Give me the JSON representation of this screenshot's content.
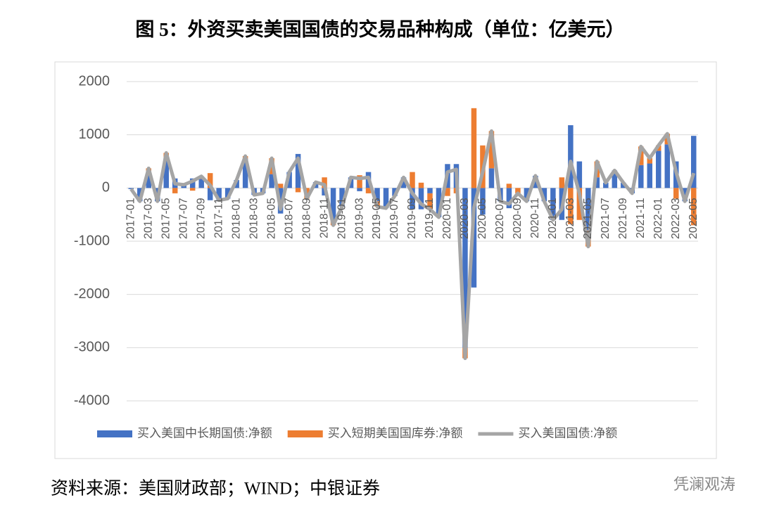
{
  "chart_data": {
    "type": "bar",
    "stacked": true,
    "title": "图 5：外资买卖美国国债的交易品种构成（单位：亿美元）",
    "source": "资料来源：美国财政部；WIND；中银证券",
    "watermark": "凭澜观涛",
    "categories": [
      "2017-01",
      null,
      "2017-03",
      null,
      "2017-05",
      null,
      "2017-07",
      null,
      "2017-09",
      null,
      "2017-11",
      null,
      "2018-01",
      null,
      "2018-03",
      null,
      "2018-05",
      null,
      "2018-07",
      null,
      "2018-09",
      null,
      "2018-11",
      null,
      "2019-01",
      null,
      "2019-03",
      null,
      "2019-05",
      null,
      "2019-07",
      null,
      "2019-09",
      null,
      "2019-11",
      null,
      "2020-01",
      null,
      "2020-03",
      null,
      "2020-05",
      null,
      "2020-07",
      null,
      "2020-09",
      null,
      "2020-11",
      null,
      "2021-01",
      null,
      "2021-03",
      null,
      "2021-05",
      null,
      "2021-07",
      null,
      "2021-09",
      null,
      "2021-11",
      null,
      "2022-01",
      null,
      "2022-03",
      null,
      "2022-05"
    ],
    "series": [
      {
        "name": "买入美国中长期国债:净额",
        "color": "#4472c4",
        "type": "bar",
        "values": [
          -20,
          -250,
          320,
          -250,
          560,
          180,
          60,
          180,
          170,
          -230,
          -230,
          -200,
          150,
          550,
          -130,
          -100,
          260,
          -480,
          300,
          640,
          0,
          110,
          -140,
          -600,
          -350,
          200,
          -60,
          300,
          -250,
          -380,
          -150,
          200,
          -400,
          -400,
          -100,
          -550,
          450,
          450,
          -3000,
          -1870,
          -500,
          370,
          -250,
          -380,
          0,
          -250,
          230,
          -250,
          -600,
          -600,
          1180,
          500,
          -800,
          200,
          100,
          330,
          100,
          -100,
          430,
          460,
          700,
          820,
          500,
          -250,
          980
        ]
      },
      {
        "name": "买入短期美国国库券:净额",
        "color": "#ed7d31",
        "type": "bar",
        "values": [
          0,
          0,
          50,
          0,
          100,
          -100,
          0,
          -50,
          50,
          280,
          0,
          0,
          0,
          50,
          0,
          0,
          300,
          80,
          0,
          -80,
          -200,
          0,
          200,
          -100,
          0,
          0,
          240,
          -100,
          -100,
          0,
          0,
          0,
          300,
          100,
          -300,
          0,
          -150,
          -100,
          -200,
          1500,
          800,
          700,
          0,
          80,
          -100,
          0,
          0,
          0,
          0,
          200,
          -680,
          -600,
          -300,
          300,
          0,
          0,
          0,
          0,
          350,
          100,
          100,
          200,
          -200,
          0,
          -700
        ]
      },
      {
        "name": "买入美国国债:净额",
        "color": "#a5a5a5",
        "type": "line",
        "values": [
          -20,
          -250,
          370,
          -250,
          660,
          80,
          60,
          130,
          220,
          50,
          -230,
          -200,
          150,
          600,
          -130,
          -100,
          560,
          -400,
          300,
          560,
          -200,
          110,
          60,
          -700,
          -350,
          200,
          180,
          200,
          -350,
          -380,
          -150,
          200,
          -100,
          -300,
          -400,
          -550,
          300,
          350,
          -3200,
          -370,
          300,
          1070,
          -250,
          -300,
          -100,
          -250,
          230,
          -250,
          -600,
          -400,
          500,
          -100,
          -1100,
          500,
          100,
          330,
          100,
          -100,
          780,
          560,
          800,
          1020,
          300,
          -250,
          280
        ]
      }
    ],
    "ylim": [
      -4000,
      2000
    ],
    "yticks": [
      -4000,
      -3000,
      -2000,
      -1000,
      0,
      1000,
      2000
    ],
    "grid": true,
    "legend": "bottom"
  }
}
